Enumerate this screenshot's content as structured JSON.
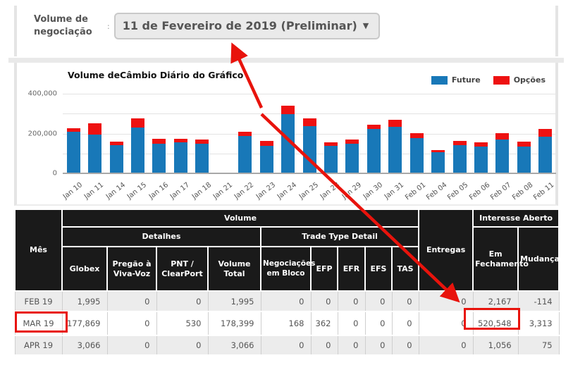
{
  "header": {
    "controls_label": "Volume de negociação",
    "label_separator": ":",
    "date_dropdown_value": "11 de Fevereiro de 2019 (Preliminar)",
    "dropdown_caret": "▼"
  },
  "chart": {
    "title": "Volume deCâmbio Diário do Gráfico",
    "y_ticks": [
      "400,000",
      "200,000",
      "0"
    ]
  },
  "chart_data": {
    "type": "bar",
    "stacked": true,
    "title": "Volume deCâmbio Diário do Gráfico",
    "categories": [
      "Jan 10",
      "Jan 11",
      "Jan 14",
      "Jan 15",
      "Jan 16",
      "Jan 17",
      "Jan 18",
      "Jan 21",
      "Jan 22",
      "Jan 23",
      "Jan 24",
      "Jan 25",
      "Jan 28",
      "Jan 29",
      "Jan 30",
      "Jan 31",
      "Feb 01",
      "Feb 04",
      "Feb 05",
      "Feb 06",
      "Feb 07",
      "Feb 08",
      "Feb 11"
    ],
    "series": [
      {
        "name": "Future",
        "color": "#1878b8",
        "values": [
          205000,
          190000,
          137000,
          224000,
          144000,
          152000,
          145000,
          0,
          184000,
          134000,
          293000,
          233000,
          134000,
          144000,
          218000,
          229000,
          171000,
          102000,
          138000,
          130000,
          164000,
          129000,
          180000
        ]
      },
      {
        "name": "Opções",
        "color": "#ee1111",
        "values": [
          17000,
          55000,
          18000,
          47000,
          24000,
          17000,
          20000,
          0,
          18000,
          24000,
          40000,
          36000,
          18000,
          20000,
          21000,
          35000,
          27000,
          12000,
          20000,
          20000,
          31000,
          25000,
          37000
        ]
      }
    ],
    "ylim": [
      0,
      400000
    ],
    "y_gridline_step": 100000,
    "grid": true,
    "legend_position": "top-right",
    "xlabel": "",
    "ylabel": ""
  },
  "table": {
    "header": {
      "mes": "Mês",
      "volume": "Volume",
      "detalhes": "Detalhes",
      "trade_type_detail": "Trade Type Detail",
      "globex": "Globex",
      "pregao": "Pregão à Viva-Voz",
      "pnt_clearport": "PNT / ClearPort",
      "volume_total": "Volume Total",
      "negociacoes_em_bloco": "Negociações em Bloco",
      "efp": "EFP",
      "efr": "EFR",
      "efs": "EFS",
      "tas": "TAS",
      "entregas": "Entregas",
      "interesse_aberto": "Interesse Aberto",
      "em_fechamento": "Em Fechamento",
      "mudanca": "Mudança"
    },
    "rows": [
      {
        "month": "FEB 19",
        "values": [
          "1,995",
          "0",
          "0",
          "1,995",
          "0",
          "0",
          "0",
          "0",
          "0",
          "0",
          "2,167",
          "-114"
        ]
      },
      {
        "month": "MAR 19",
        "values": [
          "177,869",
          "0",
          "530",
          "178,399",
          "168",
          "362",
          "0",
          "0",
          "0",
          "0",
          "520,548",
          "3,313"
        ]
      },
      {
        "month": "APR 19",
        "values": [
          "3,066",
          "0",
          "0",
          "3,066",
          "0",
          "0",
          "0",
          "0",
          "0",
          "0",
          "1,056",
          "75"
        ]
      }
    ]
  },
  "annotations": {
    "color": "#e8130c",
    "highlighted_month": "MAR 19",
    "highlighted_open_interest": "520,548"
  }
}
